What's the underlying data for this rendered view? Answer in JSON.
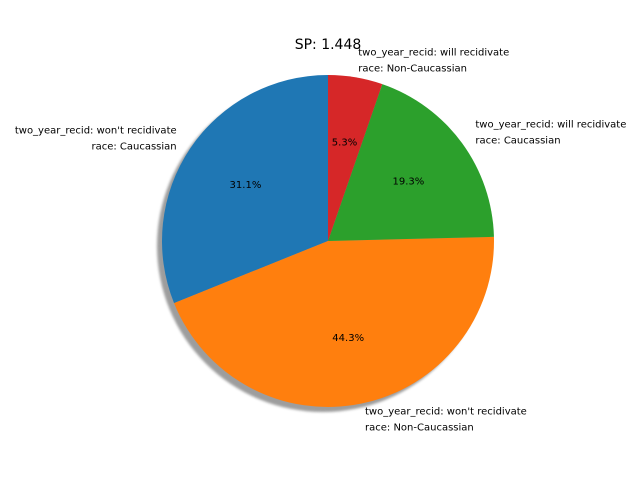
{
  "chart_data": {
    "type": "pie",
    "title": "SP: 1.448",
    "slices": [
      {
        "label_lines": [
          "two_year_recid: won't recidivate",
          "race: Caucassian"
        ],
        "value": 31.1,
        "pct_label": "31.1%",
        "color": "#1f77b4"
      },
      {
        "label_lines": [
          "two_year_recid: won't recidivate",
          "race: Non-Caucassian"
        ],
        "value": 44.3,
        "pct_label": "44.3%",
        "color": "#ff7f0e"
      },
      {
        "label_lines": [
          "two_year_recid: will recidivate",
          "race: Caucassian"
        ],
        "value": 19.3,
        "pct_label": "19.3%",
        "color": "#2ca02c"
      },
      {
        "label_lines": [
          "two_year_recid: will recidivate",
          "race: Non-Caucassian"
        ],
        "value": 5.3,
        "pct_label": "5.3%",
        "color": "#d62728"
      }
    ],
    "start_angle_deg": 90,
    "direction": "counterclockwise",
    "shadow": true
  }
}
